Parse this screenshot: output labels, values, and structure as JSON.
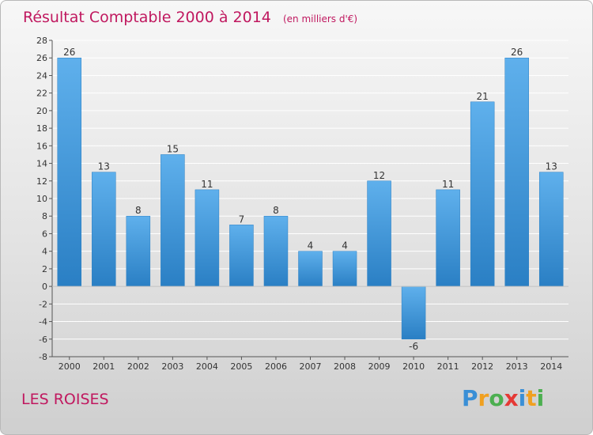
{
  "title": "Résultat Comptable 2000 à 2014",
  "unit": "(en milliers d'€)",
  "commune": "LES ROISES",
  "logo": {
    "text": "Proxiti",
    "letters": [
      "P",
      "r",
      "o",
      "x",
      "i",
      "t",
      "i"
    ],
    "colors": [
      "#3a8fd6",
      "#f0a020",
      "#4caf50",
      "#e53935",
      "#3a8fd6",
      "#f0a020",
      "#4caf50"
    ]
  },
  "colors": {
    "bar_light": "#5fb0ec",
    "bar_dark": "#2a7fc4",
    "title": "#c0185f"
  },
  "chart_data": {
    "type": "bar",
    "title": "Résultat Comptable 2000 à 2014",
    "subtitle": "(en milliers d'€)",
    "categories": [
      "2000",
      "2001",
      "2002",
      "2003",
      "2004",
      "2005",
      "2006",
      "2007",
      "2008",
      "2009",
      "2010",
      "2011",
      "2012",
      "2013",
      "2014"
    ],
    "values": [
      26,
      13,
      8,
      15,
      11,
      7,
      8,
      4,
      4,
      12,
      -6,
      11,
      21,
      26,
      13
    ],
    "ylim": [
      -8,
      28
    ],
    "yticks": [
      -8,
      -6,
      -4,
      -2,
      0,
      2,
      4,
      6,
      8,
      10,
      12,
      14,
      16,
      18,
      20,
      22,
      24,
      26,
      28
    ],
    "grid": true
  }
}
